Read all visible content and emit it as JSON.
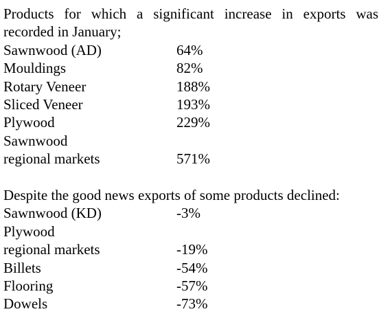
{
  "increase": {
    "intro": "Products for which a significant increase in exports was recorded in January;",
    "items": [
      {
        "name": "Sawnwood (AD)",
        "value": "64%"
      },
      {
        "name": "Mouldings",
        "value": "82%"
      },
      {
        "name": "Rotary Veneer",
        "value": "188%"
      },
      {
        "name": "Sliced Veneer",
        "value": "193%"
      },
      {
        "name": "Plywood",
        "value": "229%"
      },
      {
        "name_line1": "Sawnwood",
        "name_line2": "regional markets",
        "value": "571%"
      }
    ]
  },
  "decline": {
    "intro": "Despite the good news exports of some products declined:",
    "items": [
      {
        "name": "Sawnwood (KD)",
        "value": "-3%"
      },
      {
        "name_line1": "Plywood",
        "name_line2": "regional markets",
        "value": "-19%"
      },
      {
        "name": "Billets",
        "value": "-54%"
      },
      {
        "name": "Flooring",
        "value": "-57%"
      },
      {
        "name": "Dowels",
        "value": "-73%"
      }
    ]
  }
}
